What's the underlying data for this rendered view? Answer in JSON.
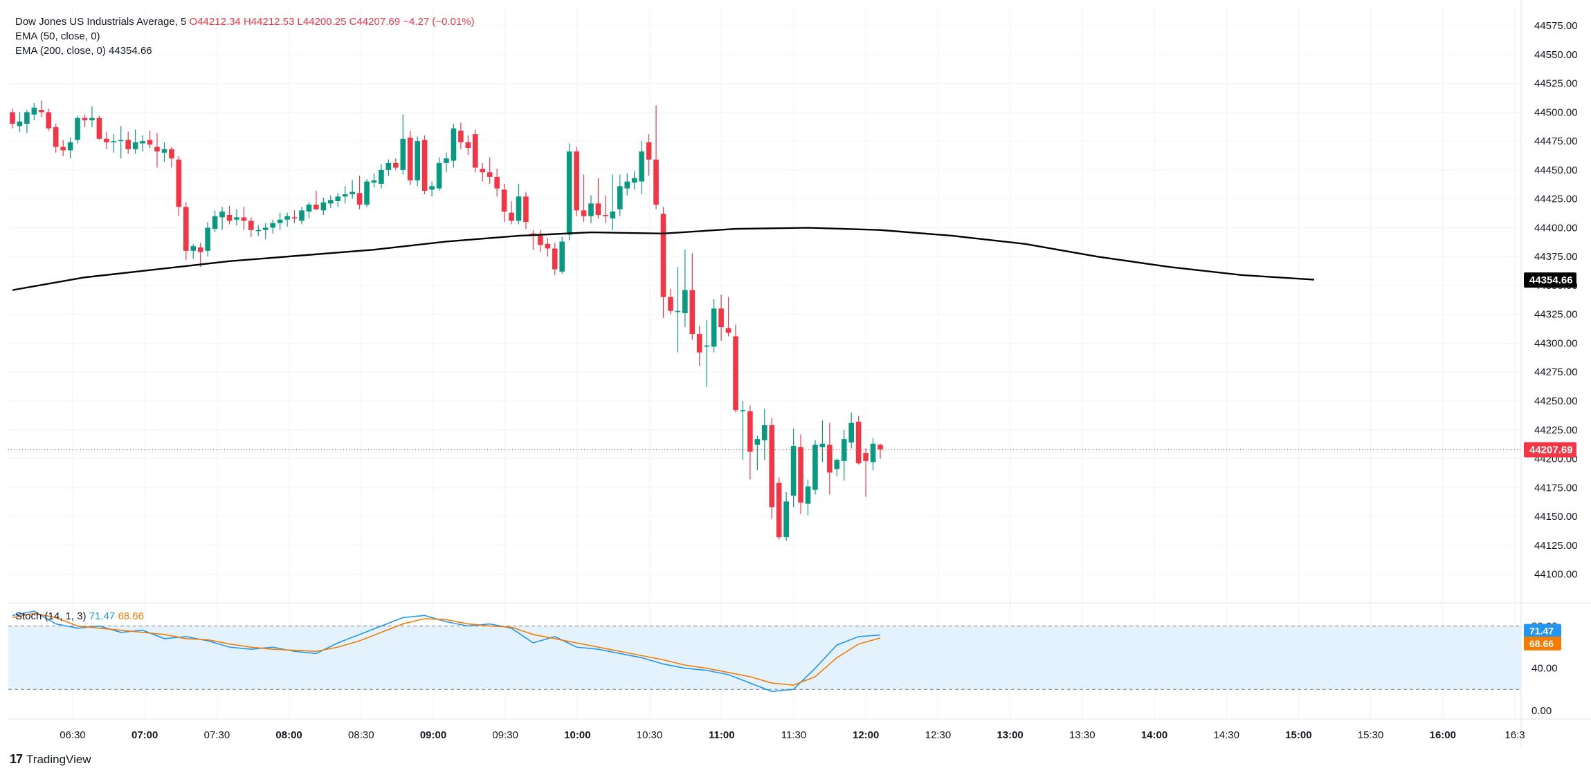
{
  "header": {
    "symbol": "Dow Jones US Industrials Average, 5",
    "ohlc": [
      {
        "k": "O",
        "v": "44212.34"
      },
      {
        "k": "H",
        "v": "44212.53"
      },
      {
        "k": "L",
        "v": "44200.25"
      },
      {
        "k": "C",
        "v": "44207.69"
      }
    ],
    "change": "−4.27 (−0.01%)",
    "ema50_label": "EMA (50, close, 0)",
    "ema200_label": "EMA (200, close, 0)",
    "ema200_value": "44354.66",
    "stoch_label": "Stoch (14, 1, 3)",
    "stoch_k": "71.47",
    "stoch_d": "68.66"
  },
  "brand": "TradingView",
  "colors": {
    "up": "#089981",
    "down": "#f23645",
    "ema200": "#000000",
    "stoch_k": "#2196f3",
    "stoch_d": "#f57c00",
    "band_fill": "#e3f2fd"
  },
  "chart_data": [
    {
      "type": "candlestick",
      "x_ticks": [
        "06:30",
        "07:00",
        "07:30",
        "08:00",
        "08:30",
        "09:00",
        "09:30",
        "10:00",
        "10:30",
        "11:00",
        "11:30",
        "12:00",
        "12:30",
        "13:00",
        "13:30",
        "14:00",
        "14:30",
        "15:00",
        "15:30",
        "16:00",
        "16:3"
      ],
      "bold_ticks": [
        "07:00",
        "08:00",
        "09:00",
        "10:00",
        "11:00",
        "12:00",
        "13:00",
        "14:00",
        "15:00",
        "16:00"
      ],
      "y_ticks": [
        "44575.00",
        "44550.00",
        "44525.00",
        "44500.00",
        "44475.00",
        "44450.00",
        "44425.00",
        "44400.00",
        "44375.00",
        "44350.00",
        "44325.00",
        "44300.00",
        "44275.00",
        "44250.00",
        "44225.00",
        "44200.00",
        "44175.00",
        "44150.00",
        "44125.00",
        "44100.00"
      ],
      "ylim": [
        44080,
        44590
      ],
      "last_price": 44207.69,
      "last_price_label": "44207.69",
      "ema200_label_value": "44354.66",
      "candles_ohlc": [
        [
          44500,
          44503,
          44486,
          44490
        ],
        [
          44488,
          44500,
          44483,
          44492
        ],
        [
          44490,
          44502,
          44482,
          44500
        ],
        [
          44498,
          44508,
          44493,
          44504
        ],
        [
          44502,
          44510,
          44496,
          44500
        ],
        [
          44500,
          44503,
          44484,
          44486
        ],
        [
          44487,
          44490,
          44465,
          44470
        ],
        [
          44470,
          44476,
          44462,
          44467
        ],
        [
          44467,
          44478,
          44460,
          44474
        ],
        [
          44476,
          44497,
          44473,
          44495
        ],
        [
          44495,
          44498,
          44487,
          44493
        ],
        [
          44493,
          44505,
          44487,
          44495
        ],
        [
          44495,
          44497,
          44476,
          44477
        ],
        [
          44477,
          44483,
          44468,
          44474
        ],
        [
          44474,
          44481,
          44465,
          44475
        ],
        [
          44475,
          44488,
          44460,
          44476
        ],
        [
          44476,
          44483,
          44464,
          44468
        ],
        [
          44468,
          44485,
          44464,
          44474
        ],
        [
          44473,
          44480,
          44466,
          44475
        ],
        [
          44476,
          44484,
          44469,
          44472
        ],
        [
          44470,
          44482,
          44452,
          44466
        ],
        [
          44465,
          44474,
          44457,
          44468
        ],
        [
          44468,
          44470,
          44452,
          44460
        ],
        [
          44459,
          44462,
          44410,
          44418
        ],
        [
          44418,
          44422,
          44372,
          44380
        ],
        [
          44380,
          44386,
          44373,
          44384
        ],
        [
          44383,
          44387,
          44366,
          44379
        ],
        [
          44380,
          44405,
          44375,
          44400
        ],
        [
          44399,
          44415,
          44396,
          44410
        ],
        [
          44409,
          44418,
          44398,
          44414
        ],
        [
          44411,
          44419,
          44403,
          44406
        ],
        [
          44407,
          44416,
          44402,
          44409
        ],
        [
          44409,
          44418,
          44398,
          44406
        ],
        [
          44406,
          44409,
          44392,
          44398
        ],
        [
          44398,
          44402,
          44393,
          44398
        ],
        [
          44398,
          44404,
          44390,
          44400
        ],
        [
          44400,
          44407,
          44395,
          44404
        ],
        [
          44404,
          44413,
          44398,
          44407
        ],
        [
          44407,
          44413,
          44401,
          44410
        ],
        [
          44409,
          44415,
          44404,
          44408
        ],
        [
          44406,
          44418,
          44403,
          44415
        ],
        [
          44414,
          44422,
          44408,
          44420
        ],
        [
          44420,
          44432,
          44415,
          44416
        ],
        [
          44415,
          44426,
          44411,
          44422
        ],
        [
          44421,
          44428,
          44417,
          44424
        ],
        [
          44423,
          44430,
          44418,
          44427
        ],
        [
          44427,
          44436,
          44421,
          44429
        ],
        [
          44429,
          44441,
          44425,
          44431
        ],
        [
          44430,
          44445,
          44416,
          44420
        ],
        [
          44420,
          44442,
          44418,
          44440
        ],
        [
          44439,
          44447,
          44435,
          44441
        ],
        [
          44438,
          44455,
          44434,
          44450
        ],
        [
          44450,
          44459,
          44445,
          44456
        ],
        [
          44456,
          44460,
          44450,
          44452
        ],
        [
          44450,
          44498,
          44446,
          44477
        ],
        [
          44478,
          44484,
          44437,
          44441
        ],
        [
          44441,
          44479,
          44436,
          44475
        ],
        [
          44476,
          44480,
          44429,
          44432
        ],
        [
          44433,
          44440,
          44427,
          44436
        ],
        [
          44434,
          44461,
          44432,
          44456
        ],
        [
          44456,
          44465,
          44448,
          44460
        ],
        [
          44458,
          44490,
          44452,
          44486
        ],
        [
          44484,
          44491,
          44468,
          44474
        ],
        [
          44474,
          44480,
          44463,
          44469
        ],
        [
          44481,
          44485,
          44448,
          44452
        ],
        [
          44451,
          44456,
          44440,
          44448
        ],
        [
          44448,
          44461,
          44438,
          44444
        ],
        [
          44444,
          44451,
          44427,
          44434
        ],
        [
          44433,
          44438,
          44405,
          44414
        ],
        [
          44413,
          44423,
          44403,
          44406
        ],
        [
          44406,
          44438,
          44403,
          44427
        ],
        [
          44427,
          44431,
          44399,
          44405
        ],
        [
          44395,
          44398,
          44381,
          44394
        ],
        [
          44393,
          44398,
          44379,
          44385
        ],
        [
          44386,
          44391,
          44375,
          44382
        ],
        [
          44382,
          44387,
          44359,
          44364
        ],
        [
          44362,
          44392,
          44360,
          44388
        ],
        [
          44394,
          44473,
          44389,
          44466
        ],
        [
          44466,
          44470,
          44410,
          44415
        ],
        [
          44415,
          44446,
          44405,
          44410
        ],
        [
          44410,
          44428,
          44404,
          44421
        ],
        [
          44421,
          44443,
          44408,
          44411
        ],
        [
          44411,
          44428,
          44404,
          44410
        ],
        [
          44408,
          44446,
          44398,
          44414
        ],
        [
          44416,
          44446,
          44410,
          44436
        ],
        [
          44434,
          44447,
          44428,
          44440
        ],
        [
          44439,
          44449,
          44433,
          44443
        ],
        [
          44440,
          44475,
          44429,
          44466
        ],
        [
          44474,
          44481,
          44445,
          44459
        ],
        [
          44459,
          44506,
          44416,
          44420
        ],
        [
          44412,
          44418,
          44322,
          44340
        ],
        [
          44340,
          44347,
          44325,
          44328
        ],
        [
          44327,
          44366,
          44292,
          44328
        ],
        [
          44326,
          44381,
          44314,
          44346
        ],
        [
          44346,
          44378,
          44303,
          44308
        ],
        [
          44308,
          44315,
          44280,
          44292
        ],
        [
          44297,
          44320,
          44262,
          44298
        ],
        [
          44297,
          44338,
          44292,
          44330
        ],
        [
          44330,
          44342,
          44302,
          44314
        ],
        [
          44313,
          44340,
          44306,
          44309
        ],
        [
          44306,
          44316,
          44240,
          44242
        ],
        [
          44241,
          44250,
          44199,
          44242
        ],
        [
          44241,
          44246,
          44182,
          44206
        ],
        [
          44212,
          44220,
          44190,
          44217
        ],
        [
          44216,
          44243,
          44199,
          44229
        ],
        [
          44229,
          44235,
          44148,
          44158
        ],
        [
          44179,
          44184,
          44130,
          44132
        ],
        [
          44132,
          44171,
          44129,
          44163
        ],
        [
          44168,
          44226,
          44158,
          44211
        ],
        [
          44210,
          44221,
          44152,
          44162
        ],
        [
          44161,
          44182,
          44151,
          44176
        ],
        [
          44173,
          44216,
          44169,
          44212
        ],
        [
          44210,
          44233,
          44197,
          44213
        ],
        [
          44212,
          44231,
          44169,
          44188
        ],
        [
          44191,
          44200,
          44185,
          44199
        ],
        [
          44198,
          44225,
          44181,
          44217
        ],
        [
          44214,
          44240,
          44209,
          44231
        ],
        [
          44232,
          44237,
          44195,
          44196
        ],
        [
          44205,
          44209,
          44167,
          44198
        ],
        [
          44197,
          44218,
          44190,
          44213
        ],
        [
          44212,
          44213,
          44200,
          44208
        ]
      ],
      "ema200": [
        [
          0,
          44346
        ],
        [
          10,
          44357
        ],
        [
          20,
          44364
        ],
        [
          30,
          44371
        ],
        [
          40,
          44376
        ],
        [
          50,
          44381
        ],
        [
          60,
          44388
        ],
        [
          70,
          44393
        ],
        [
          80,
          44396
        ],
        [
          90,
          44395
        ],
        [
          100,
          44399
        ],
        [
          110,
          44400
        ],
        [
          120,
          44398
        ],
        [
          130,
          44393
        ],
        [
          140,
          44386
        ],
        [
          150,
          44375
        ],
        [
          160,
          44366
        ],
        [
          170,
          44359
        ],
        [
          180,
          44355
        ]
      ]
    },
    {
      "type": "line",
      "title": "Stoch (14, 1, 3)",
      "y_ticks": [
        "80.00",
        "40.00",
        "0.00"
      ],
      "ylim": [
        -8,
        102
      ],
      "band": [
        20,
        80
      ],
      "series": [
        {
          "name": "%K",
          "last_label": "71.47",
          "points": [
            [
              0,
              90
            ],
            [
              5,
              94
            ],
            [
              10,
              82
            ],
            [
              15,
              78
            ],
            [
              20,
              80
            ],
            [
              25,
              74
            ],
            [
              30,
              76
            ],
            [
              35,
              68
            ],
            [
              40,
              70
            ],
            [
              45,
              66
            ],
            [
              50,
              60
            ],
            [
              55,
              58
            ],
            [
              60,
              60
            ],
            [
              65,
              56
            ],
            [
              70,
              54
            ],
            [
              75,
              64
            ],
            [
              80,
              72
            ],
            [
              85,
              80
            ],
            [
              90,
              88
            ],
            [
              95,
              90
            ],
            [
              100,
              84
            ],
            [
              105,
              80
            ],
            [
              110,
              82
            ],
            [
              115,
              78
            ],
            [
              120,
              64
            ],
            [
              125,
              70
            ],
            [
              130,
              60
            ],
            [
              135,
              58
            ],
            [
              140,
              54
            ],
            [
              145,
              50
            ],
            [
              150,
              44
            ],
            [
              155,
              40
            ],
            [
              160,
              38
            ],
            [
              165,
              34
            ],
            [
              170,
              26
            ],
            [
              175,
              18
            ],
            [
              180,
              20
            ],
            [
              185,
              40
            ],
            [
              190,
              62
            ],
            [
              195,
              70
            ],
            [
              200,
              71.47
            ]
          ]
        },
        {
          "name": "%D",
          "last_label": "68.66",
          "points": [
            [
              0,
              88
            ],
            [
              5,
              92
            ],
            [
              10,
              88
            ],
            [
              15,
              80
            ],
            [
              20,
              78
            ],
            [
              25,
              76
            ],
            [
              30,
              74
            ],
            [
              35,
              72
            ],
            [
              40,
              68
            ],
            [
              45,
              67
            ],
            [
              50,
              63
            ],
            [
              55,
              60
            ],
            [
              60,
              58
            ],
            [
              65,
              57
            ],
            [
              70,
              56
            ],
            [
              75,
              60
            ],
            [
              80,
              66
            ],
            [
              85,
              74
            ],
            [
              90,
              82
            ],
            [
              95,
              87
            ],
            [
              100,
              86
            ],
            [
              105,
              82
            ],
            [
              110,
              80
            ],
            [
              115,
              79
            ],
            [
              120,
              72
            ],
            [
              125,
              68
            ],
            [
              130,
              64
            ],
            [
              135,
              60
            ],
            [
              140,
              56
            ],
            [
              145,
              52
            ],
            [
              150,
              48
            ],
            [
              155,
              43
            ],
            [
              160,
              40
            ],
            [
              165,
              36
            ],
            [
              170,
              32
            ],
            [
              175,
              26
            ],
            [
              180,
              24
            ],
            [
              185,
              32
            ],
            [
              190,
              50
            ],
            [
              195,
              63
            ],
            [
              200,
              68.66
            ]
          ]
        }
      ]
    }
  ]
}
